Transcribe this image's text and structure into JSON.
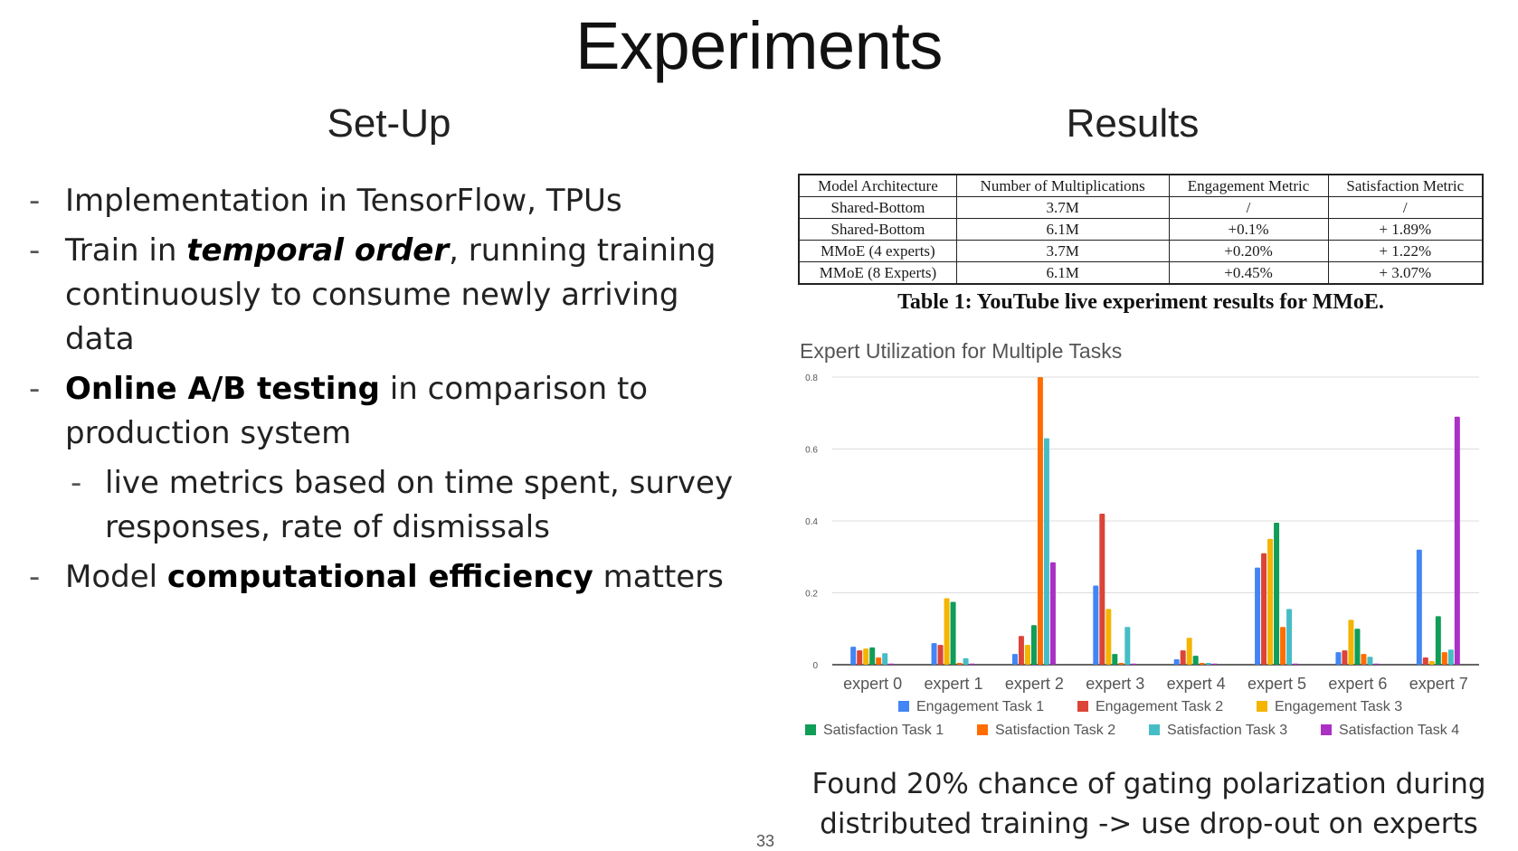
{
  "slide": {
    "title": "Experiments",
    "setup_heading": "Set-Up",
    "results_heading": "Results",
    "page_number": "33",
    "bullets": {
      "b1": "Implementation in TensorFlow, TPUs",
      "b2_pre": "Train in ",
      "b2_em": "temporal order",
      "b2_post": ", running training continuously to consume newly arriving data",
      "b3_bold": "Online A/B testing",
      "b3_post": " in comparison to production system",
      "b3_sub": "live metrics based on time spent, survey responses, rate of dismissals",
      "b4_pre": "Model ",
      "b4_bold": "computational efficiency",
      "b4_post": " matters",
      "dash": "-"
    },
    "conclusion_line1": "Found 20% chance of gating polarization during",
    "conclusion_line2": "distributed training -> use drop-out on experts"
  },
  "table": {
    "headers": [
      "Model Architecture",
      "Number of Multiplications",
      "Engagement Metric",
      "Satisfaction Metric"
    ],
    "rows": [
      [
        "Shared-Bottom",
        "3.7M",
        "/",
        "/"
      ],
      [
        "Shared-Bottom",
        "6.1M",
        "+0.1%",
        "+ 1.89%"
      ],
      [
        "MMoE (4 experts)",
        "3.7M",
        "+0.20%",
        "+ 1.22%"
      ],
      [
        "MMoE (8 Experts)",
        "6.1M",
        "+0.45%",
        "+ 3.07%"
      ]
    ],
    "caption": "Table 1: YouTube live experiment results for MMoE."
  },
  "chart_data": {
    "type": "bar",
    "title": "Expert Utilization for Multiple Tasks",
    "categories": [
      "expert 0",
      "expert 1",
      "expert 2",
      "expert 3",
      "expert 4",
      "expert 5",
      "expert 6",
      "expert 7"
    ],
    "ylim": [
      0,
      0.8
    ],
    "yticks": [
      "0",
      "0.2",
      "0.4",
      "0.6",
      "0.8"
    ],
    "grid": true,
    "legend_position": "bottom",
    "series": [
      {
        "name": "Engagement Task 1",
        "color": "#4285f4",
        "values": [
          0.05,
          0.06,
          0.03,
          0.22,
          0.015,
          0.27,
          0.035,
          0.32
        ]
      },
      {
        "name": "Engagement Task 2",
        "color": "#db4437",
        "values": [
          0.04,
          0.055,
          0.08,
          0.42,
          0.04,
          0.31,
          0.04,
          0.02
        ]
      },
      {
        "name": "Engagement Task 3",
        "color": "#f4b400",
        "values": [
          0.045,
          0.185,
          0.055,
          0.155,
          0.075,
          0.35,
          0.125,
          0.01
        ]
      },
      {
        "name": "Satisfaction Task 1",
        "color": "#0f9d58",
        "values": [
          0.048,
          0.175,
          0.11,
          0.03,
          0.025,
          0.395,
          0.1,
          0.135
        ]
      },
      {
        "name": "Satisfaction Task 2",
        "color": "#ff6d00",
        "values": [
          0.02,
          0.005,
          0.8,
          0.005,
          0.005,
          0.105,
          0.03,
          0.035
        ]
      },
      {
        "name": "Satisfaction Task 3",
        "color": "#46bdc6",
        "values": [
          0.032,
          0.018,
          0.63,
          0.105,
          0.005,
          0.155,
          0.022,
          0.042
        ]
      },
      {
        "name": "Satisfaction Task 4",
        "color": "#ab30c4",
        "values": [
          0.003,
          0.003,
          0.285,
          0.003,
          0.003,
          0.003,
          0.003,
          0.69
        ]
      }
    ]
  }
}
